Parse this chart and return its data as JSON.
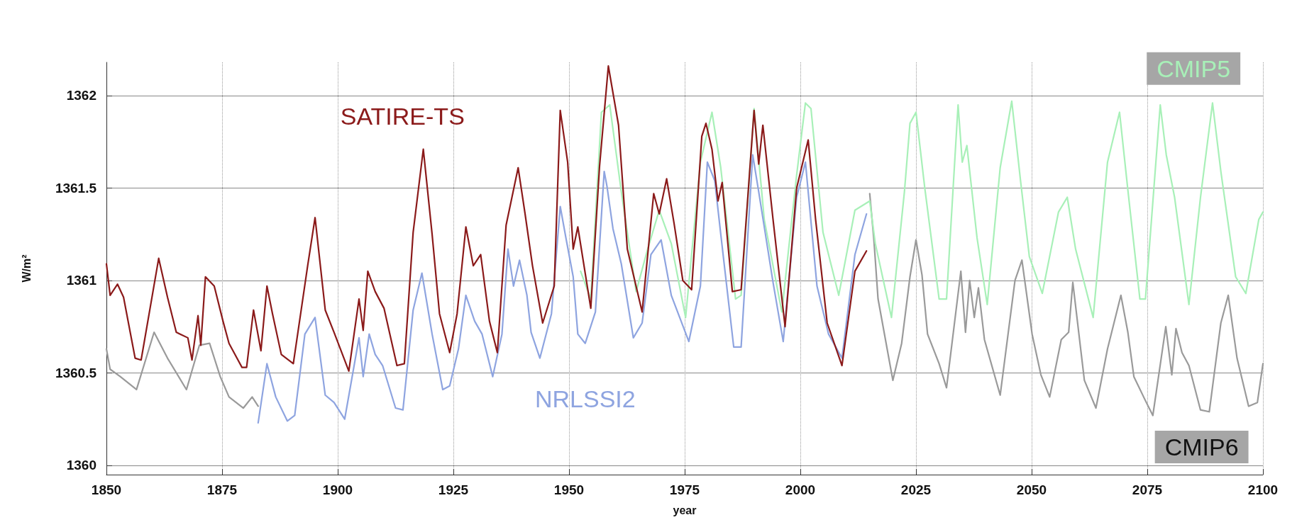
{
  "chart_data": {
    "type": "line",
    "xlabel": "year",
    "ylabel": "W/m²",
    "xlim": [
      1850,
      2100
    ],
    "ylim": [
      1359.95,
      1362.18
    ],
    "xticks": [
      1850,
      1875,
      1900,
      1925,
      1950,
      1975,
      2000,
      2025,
      2050,
      2075,
      2100
    ],
    "yticks": [
      1360,
      1360.5,
      1361,
      1361.5,
      1362
    ],
    "grid": true,
    "legend": false,
    "marker": "none",
    "line_style": "solid",
    "series": [
      {
        "name": "SATIRE-TS",
        "color": "#8b1a1a",
        "x": [
          1850,
          1850.8,
          1852.4,
          1853.7,
          1856.2,
          1857.5,
          1861.3,
          1863.2,
          1865.1,
          1867.6,
          1868.5,
          1869.8,
          1870.4,
          1871.4,
          1873.3,
          1875.2,
          1876.5,
          1879.3,
          1880.3,
          1881.8,
          1883.4,
          1884.7,
          1885.9,
          1887.8,
          1890.4,
          1893.5,
          1895.1,
          1897.3,
          1899.2,
          1902.4,
          1904.6,
          1905.5,
          1906.5,
          1908.1,
          1910,
          1912.8,
          1914.4,
          1916.3,
          1918.5,
          1920.4,
          1922,
          1924.2,
          1925.8,
          1927.7,
          1929.3,
          1930.9,
          1932.8,
          1934.5,
          1936.4,
          1939,
          1940.5,
          1942.1,
          1944.3,
          1946.8,
          1948.1,
          1949.7,
          1950.9,
          1951.9,
          1954.7,
          1956.6,
          1958.5,
          1960.7,
          1962.6,
          1965.8,
          1968.3,
          1969.5,
          1971.1,
          1972.7,
          1974.6,
          1976.5,
          1978.7,
          1979.6,
          1980.9,
          1982.2,
          1983.1,
          1985.3,
          1987.2,
          1990,
          1991,
          1991.9,
          1994.1,
          1996.7,
          1999.2,
          2001.7,
          2003.3,
          2005.8,
          2009,
          2011.8,
          2014.3
        ],
        "values": [
          1361.09,
          1360.92,
          1360.98,
          1360.91,
          1360.58,
          1360.57,
          1361.12,
          1360.91,
          1360.72,
          1360.69,
          1360.57,
          1360.81,
          1360.65,
          1361.02,
          1360.97,
          1360.78,
          1360.66,
          1360.53,
          1360.53,
          1360.84,
          1360.62,
          1360.97,
          1360.82,
          1360.6,
          1360.55,
          1361.08,
          1361.34,
          1360.84,
          1360.72,
          1360.51,
          1360.9,
          1360.73,
          1361.05,
          1360.94,
          1360.85,
          1360.54,
          1360.55,
          1361.26,
          1361.71,
          1361.25,
          1360.82,
          1360.61,
          1360.82,
          1361.29,
          1361.08,
          1361.14,
          1360.78,
          1360.61,
          1361.3,
          1361.61,
          1361.36,
          1361.08,
          1360.77,
          1360.97,
          1361.92,
          1361.64,
          1361.17,
          1361.29,
          1360.85,
          1361.62,
          1362.16,
          1361.84,
          1361.17,
          1360.83,
          1361.47,
          1361.36,
          1361.55,
          1361.31,
          1361,
          1360.95,
          1361.78,
          1361.85,
          1361.71,
          1361.43,
          1361.53,
          1360.94,
          1360.95,
          1361.92,
          1361.63,
          1361.84,
          1361.33,
          1360.75,
          1361.5,
          1361.76,
          1361.33,
          1360.77,
          1360.54,
          1361.05,
          1361.16
        ]
      },
      {
        "name": "NRLSSI2",
        "color": "#8ea4e0",
        "x": [
          1882.8,
          1884.7,
          1886.6,
          1889.1,
          1890.7,
          1892.9,
          1895.1,
          1897.3,
          1899.2,
          1901.5,
          1904.6,
          1905.5,
          1906.8,
          1908.1,
          1909.7,
          1912.5,
          1914.1,
          1916.3,
          1918.2,
          1920.4,
          1922.7,
          1924.2,
          1926.1,
          1927.7,
          1929.6,
          1931.2,
          1933.5,
          1935.5,
          1936.8,
          1938,
          1939.3,
          1940.9,
          1941.8,
          1943.7,
          1946.2,
          1948.1,
          1949.4,
          1950.9,
          1951.9,
          1953.5,
          1955.7,
          1957.6,
          1958.2,
          1959.5,
          1961.3,
          1963.9,
          1965.8,
          1967.7,
          1969.9,
          1972.1,
          1975.9,
          1978.4,
          1979.9,
          1981.5,
          1982.8,
          1985.6,
          1987.2,
          1989.7,
          1991,
          1994.1,
          1996.3,
          1999.2,
          2001.1,
          2003.6,
          2006.1,
          2009,
          2011.8,
          2014.3
        ],
        "values": [
          1360.23,
          1360.55,
          1360.37,
          1360.24,
          1360.27,
          1360.71,
          1360.8,
          1360.38,
          1360.34,
          1360.25,
          1360.69,
          1360.48,
          1360.71,
          1360.6,
          1360.54,
          1360.31,
          1360.3,
          1360.84,
          1361.04,
          1360.71,
          1360.41,
          1360.43,
          1360.63,
          1360.92,
          1360.78,
          1360.71,
          1360.48,
          1360.71,
          1361.17,
          1360.97,
          1361.11,
          1360.92,
          1360.72,
          1360.58,
          1360.82,
          1361.4,
          1361.22,
          1361.02,
          1360.71,
          1360.66,
          1360.83,
          1361.59,
          1361.51,
          1361.28,
          1361.09,
          1360.69,
          1360.77,
          1361.14,
          1361.22,
          1360.92,
          1360.67,
          1360.97,
          1361.64,
          1361.54,
          1361.25,
          1360.64,
          1360.64,
          1361.68,
          1361.48,
          1360.99,
          1360.67,
          1361.45,
          1361.64,
          1360.97,
          1360.71,
          1360.58,
          1361.14,
          1361.36
        ]
      },
      {
        "name": "CMIP5",
        "color": "#a8f0b8",
        "x": [
          1952.5,
          1954.7,
          1957,
          1958.8,
          1961.3,
          1964.5,
          1967,
          1969.5,
          1972.1,
          1975.2,
          1978.4,
          1980.9,
          1982.8,
          1986,
          1987.2,
          1990,
          1992.2,
          1996,
          1999.2,
          2001.1,
          2002.3,
          2004.9,
          2008.3,
          2011.8,
          2015,
          2016.2,
          2019.7,
          2022.5,
          2023.7,
          2025,
          2026.9,
          2030,
          2031.6,
          2034.1,
          2035,
          2036,
          2038.2,
          2040.4,
          2043.2,
          2045.7,
          2047.6,
          2049.5,
          2052.3,
          2055.8,
          2057.7,
          2059.5,
          2063.3,
          2066.4,
          2069,
          2070.8,
          2073.4,
          2074.6,
          2077.8,
          2079.1,
          2080.9,
          2084,
          2086.5,
          2089.1,
          2090.9,
          2094.1,
          2096.3,
          2099.1,
          2100
        ],
        "values": [
          1361.05,
          1360.9,
          1361.91,
          1361.95,
          1361.48,
          1360.94,
          1361.17,
          1361.38,
          1361.2,
          1360.8,
          1361.64,
          1361.91,
          1361.61,
          1360.9,
          1360.92,
          1361.93,
          1361.33,
          1360.83,
          1361.57,
          1361.96,
          1361.93,
          1361.26,
          1360.92,
          1361.38,
          1361.43,
          1361.2,
          1360.8,
          1361.48,
          1361.85,
          1361.91,
          1361.5,
          1360.9,
          1360.9,
          1361.95,
          1361.64,
          1361.73,
          1361.23,
          1360.87,
          1361.61,
          1361.97,
          1361.54,
          1361.13,
          1360.93,
          1361.37,
          1361.45,
          1361.17,
          1360.8,
          1361.64,
          1361.91,
          1361.49,
          1360.9,
          1360.9,
          1361.95,
          1361.68,
          1361.45,
          1360.87,
          1361.45,
          1361.96,
          1361.59,
          1361.02,
          1360.93,
          1361.33,
          1361.37
        ]
      },
      {
        "name": "CMIP6",
        "color": "#9a9a9a",
        "x": [
          1850,
          1850.8,
          1853,
          1856.5,
          1860.3,
          1863.2,
          1867.3,
          1870.1,
          1872.3,
          1874.6,
          1876.5,
          1879.6,
          1881.5,
          1882.8,
          1950,
          2015,
          2015.9,
          2016.8,
          2020,
          2021.9,
          2023.7,
          2025,
          2026.3,
          2027.5,
          2030,
          2031.6,
          2034.7,
          2035.7,
          2036.6,
          2037.6,
          2038.5,
          2039.8,
          2043.2,
          2046.4,
          2047.9,
          2050.1,
          2052,
          2053.9,
          2056.4,
          2058,
          2058.9,
          2061.4,
          2063.9,
          2066.4,
          2069.3,
          2070.8,
          2072.1,
          2074.6,
          2076.2,
          2079,
          2080.3,
          2081.2,
          2082.5,
          2084,
          2086.5,
          2088.4,
          2090.9,
          2092.5,
          2094.4,
          2096.9,
          2098.8,
          2100
        ],
        "values": [
          1360.63,
          1360.52,
          1360.48,
          1360.41,
          1360.72,
          1360.58,
          1360.41,
          1360.65,
          1360.66,
          1360.48,
          1360.37,
          1360.31,
          1360.37,
          1360.32,
          null,
          1361.47,
          1361.22,
          1360.9,
          1360.46,
          1360.66,
          1361.02,
          1361.22,
          1361.03,
          1360.71,
          1360.55,
          1360.42,
          1361.05,
          1360.72,
          1361,
          1360.8,
          1360.96,
          1360.68,
          1360.38,
          1361,
          1361.11,
          1360.71,
          1360.49,
          1360.37,
          1360.68,
          1360.72,
          1360.99,
          1360.46,
          1360.31,
          1360.63,
          1360.92,
          1360.72,
          1360.48,
          1360.35,
          1360.27,
          1360.75,
          1360.49,
          1360.74,
          1360.61,
          1360.54,
          1360.3,
          1360.29,
          1360.77,
          1360.92,
          1360.58,
          1360.32,
          1360.34,
          1360.55
        ]
      }
    ]
  }
}
